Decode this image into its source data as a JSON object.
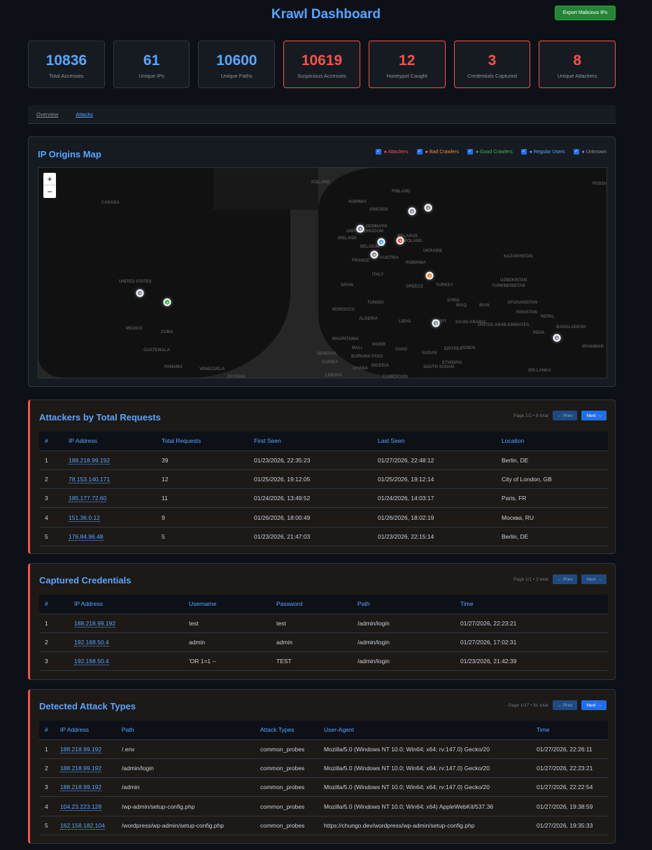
{
  "header": {
    "title": "Krawl Dashboard",
    "export_label": "Export Malicious IPs"
  },
  "stats": [
    {
      "value": "10836",
      "label": "Total Accesses",
      "alert": false
    },
    {
      "value": "61",
      "label": "Unique IPs",
      "alert": false
    },
    {
      "value": "10600",
      "label": "Unique Paths",
      "alert": false
    },
    {
      "value": "10619",
      "label": "Suspicious Accesses",
      "alert": true
    },
    {
      "value": "12",
      "label": "Honeypot Caught",
      "alert": true
    },
    {
      "value": "3",
      "label": "Credentials Captured",
      "alert": true
    },
    {
      "value": "8",
      "label": "Unique Attackers",
      "alert": true
    }
  ],
  "tabs": [
    {
      "label": "Overview",
      "active": false
    },
    {
      "label": "Attacks",
      "active": true
    }
  ],
  "map": {
    "title": "IP Origins Map",
    "legend": [
      {
        "label": "● Attackers",
        "color": "#f85149",
        "checked": true
      },
      {
        "label": "● Bad Crawlers",
        "color": "#f0883e",
        "checked": true
      },
      {
        "label": "● Good Crawlers",
        "color": "#3fb950",
        "checked": true
      },
      {
        "label": "● Regular Users",
        "color": "#58a6ff",
        "checked": true
      },
      {
        "label": "● Unknown",
        "color": "#8b949e",
        "checked": true
      }
    ],
    "zoom_in": "+",
    "zoom_out": "−",
    "labels": [
      "CANADA",
      "UNITED STATES",
      "MEXICO",
      "CUBA",
      "GUATEMALA",
      "PANAMA",
      "VENEZUELA",
      "GUYANA",
      "ICELAND",
      "NORWAY",
      "SWEDEN",
      "FINLAND",
      "UNITED KINGDOM",
      "IRELAND",
      "DENMARK",
      "BELARUS",
      "POLAND",
      "BELGIUM",
      "FRANCE",
      "AUSTRIA",
      "UKRAINE",
      "ROMANIA",
      "ITALY",
      "SPAIN",
      "GREECE",
      "TURKEY",
      "KAZAKHSTAN",
      "UZBEKISTAN",
      "TURKMENISTAN",
      "TUNISIA",
      "SYRIA",
      "IRAQ",
      "IRAN",
      "AFGHANISTAN",
      "PAKISTAN",
      "NEPAL",
      "BANGLADESH",
      "INDIA",
      "MOROCCO",
      "ALGERIA",
      "LIBYA",
      "EGYPT",
      "SAUDI ARABIA",
      "UNITED ARAB EMIRATES",
      "YEMEN",
      "MAURITANIA",
      "MALI",
      "NIGER",
      "CHAD",
      "SUDAN",
      "ERITREA",
      "ETHIOPIA",
      "SENEGAL",
      "BURKINA FASO",
      "GUINEA",
      "GHANA",
      "NIGERIA",
      "SOUTH SUDAN",
      "LIBERIA",
      "CAMEROON",
      "SRI LANKA",
      "MYANMAR",
      "RUSSIA"
    ],
    "markers": [
      {
        "region": "United States",
        "category": "unknown",
        "color": "#8b949e"
      },
      {
        "region": "United States (southeast)",
        "category": "good_crawler",
        "color": "#3fb950"
      },
      {
        "region": "United Kingdom",
        "category": "unknown",
        "color": "#8b949e"
      },
      {
        "region": "Belgium/Netherlands",
        "category": "regular_user",
        "color": "#58a6ff"
      },
      {
        "region": "Germany",
        "category": "attacker",
        "color": "#f85149"
      },
      {
        "region": "France",
        "category": "unknown",
        "color": "#8b949e"
      },
      {
        "region": "Sweden",
        "category": "unknown",
        "color": "#8b949e"
      },
      {
        "region": "Finland/Russia",
        "category": "unknown",
        "color": "#8b949e"
      },
      {
        "region": "Bulgaria",
        "category": "bad_crawler",
        "color": "#f0883e"
      },
      {
        "region": "Egypt",
        "category": "unknown",
        "color": "#8b949e"
      },
      {
        "region": "India",
        "category": "unknown",
        "color": "#8b949e"
      }
    ]
  },
  "attackers": {
    "title": "Attackers by Total Requests",
    "page_info": "Page 1/2 • 8 total",
    "prev": "← Prev",
    "next": "Next →",
    "prev_enabled": false,
    "next_enabled": true,
    "columns": [
      "#",
      "IP Address",
      "Total Requests",
      "First Seen",
      "Last Seen",
      "Location"
    ],
    "rows": [
      [
        "1",
        "188.218.99.192",
        "39",
        "01/23/2026, 22:35:23",
        "01/27/2026, 22:48:12",
        "Berlin, DE"
      ],
      [
        "2",
        "78.153.140.171",
        "12",
        "01/25/2026, 19:12:05",
        "01/25/2026, 19:12:14",
        "City of London, GB"
      ],
      [
        "3",
        "185.177.72.60",
        "11",
        "01/24/2026, 13:49:52",
        "01/24/2026, 14:03:17",
        "Paris, FR"
      ],
      [
        "4",
        "151.36.0.12",
        "9",
        "01/26/2026, 18:00:49",
        "01/26/2026, 18:02:19",
        "Москва, RU"
      ],
      [
        "5",
        "176.84.96.48",
        "5",
        "01/23/2026, 21:47:03",
        "01/23/2026, 22:15:14",
        "Berlin, DE"
      ]
    ]
  },
  "credentials": {
    "title": "Captured Credentials",
    "page_info": "Page 1/1 • 3 total",
    "prev": "← Prev",
    "next": "Next →",
    "prev_enabled": false,
    "next_enabled": false,
    "columns": [
      "#",
      "IP Address",
      "Username",
      "Password",
      "Path",
      "Time"
    ],
    "rows": [
      [
        "1",
        "188.218.99.192",
        "test",
        "test",
        "/admin/login",
        "01/27/2026, 22:23:21"
      ],
      [
        "2",
        "192.168.50.4",
        "admin",
        "admin",
        "/admin/login",
        "01/27/2026, 17:02:31"
      ],
      [
        "3",
        "192.168.50.4",
        "'OR 1=1 --",
        "TEST",
        "/admin/login",
        "01/23/2026, 21:42:39"
      ]
    ]
  },
  "attacks": {
    "title": "Detected Attack Types",
    "page_info": "Page 1/17 • 81 total",
    "prev": "← Prev",
    "next": "Next →",
    "prev_enabled": false,
    "next_enabled": true,
    "columns": [
      "#",
      "IP Address",
      "Path",
      "Attack Types",
      "User-Agent",
      "Time"
    ],
    "rows": [
      [
        "1",
        "188.218.99.192",
        "/.env",
        "common_probes",
        "Mozilla/5.0 (Windows NT 10.0; Win64; x64; rv:147.0) Gecko/20",
        "01/27/2026, 22:26:11"
      ],
      [
        "2",
        "188.218.99.192",
        "/admin/login",
        "common_probes",
        "Mozilla/5.0 (Windows NT 10.0; Win64; x64; rv:147.0) Gecko/20",
        "01/27/2026, 22:23:21"
      ],
      [
        "3",
        "188.218.99.192",
        "/admin",
        "common_probes",
        "Mozilla/5.0 (Windows NT 10.0; Win64; x64; rv:147.0) Gecko/20",
        "01/27/2026, 22:22:54"
      ],
      [
        "4",
        "104.23.223.128",
        "/wp-admin/setup-config.php",
        "common_probes",
        "Mozilla/5.0 (Windows NT 10.0; Win64; x64) AppleWebKit/537.36",
        "01/27/2026, 19:38:59"
      ],
      [
        "5",
        "162.158.182.104",
        "/wordpress/wp-admin/setup-config.php",
        "common_probes",
        "https://chungo.dev/wordpress/wp-admin/setup-config.php",
        "01/27/2026, 19:35:33"
      ]
    ]
  }
}
